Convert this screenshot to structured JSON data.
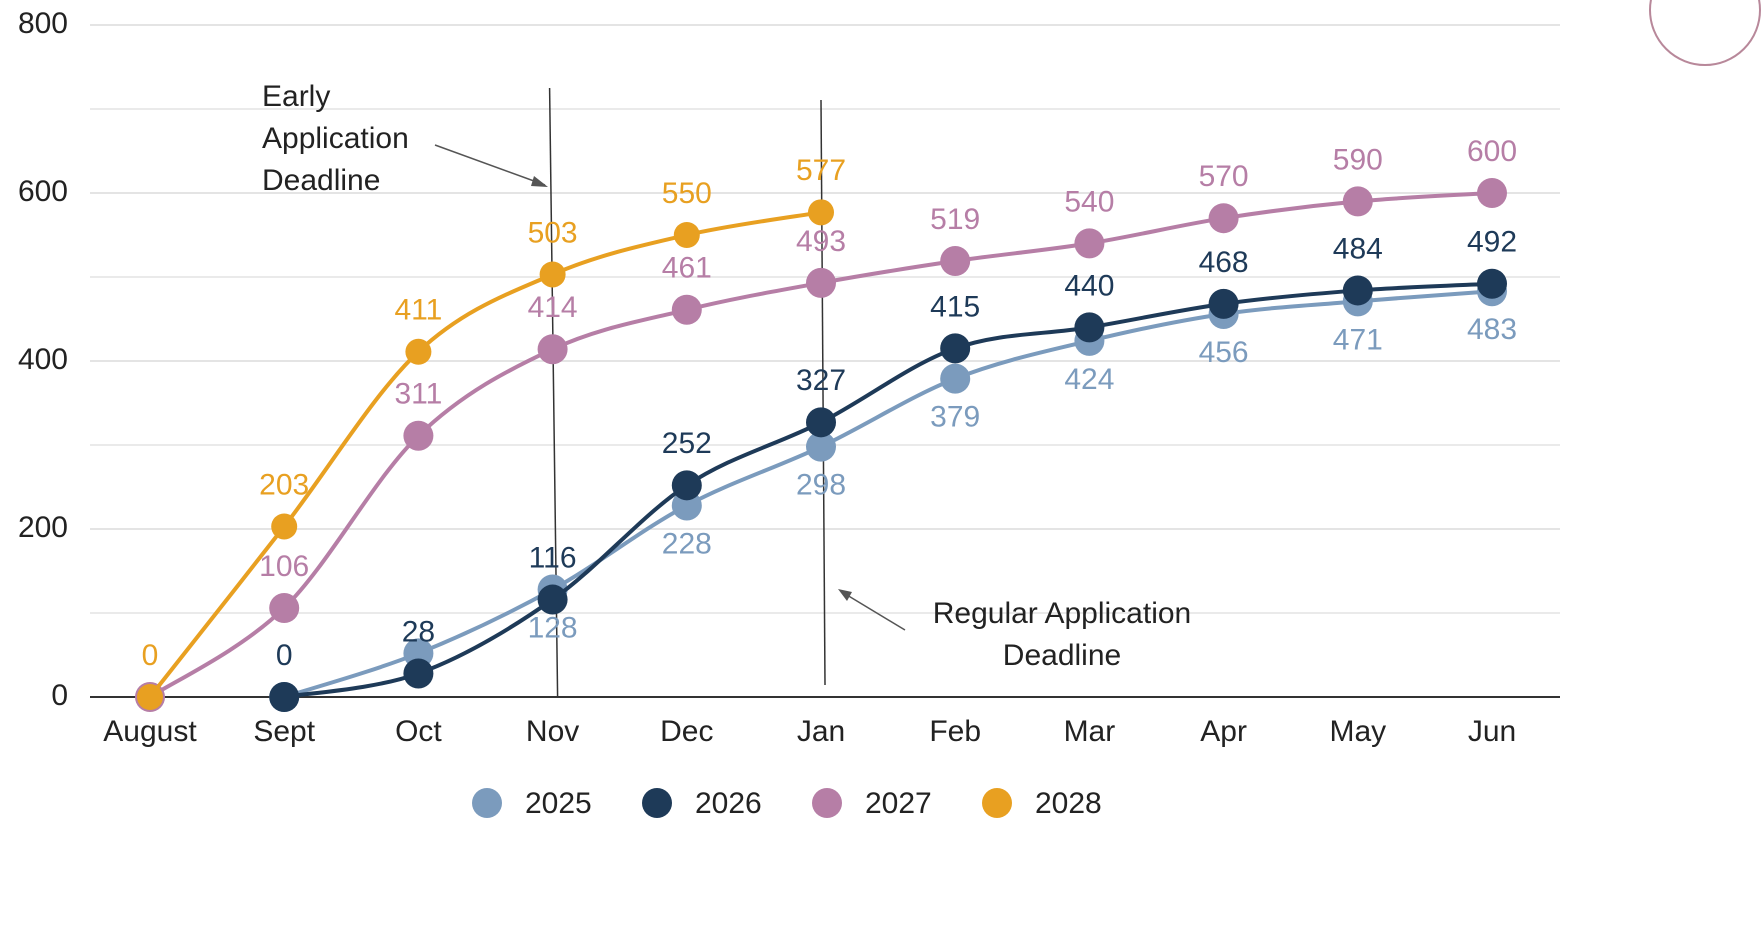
{
  "chart_data": {
    "type": "line",
    "categories": [
      "August",
      "Sept",
      "Oct",
      "Nov",
      "Dec",
      "Jan",
      "Feb",
      "Mar",
      "Apr",
      "May",
      "Jun"
    ],
    "series": [
      {
        "name": "2025",
        "color": "#7b9bbd",
        "values": [
          null,
          0,
          52,
          128,
          228,
          298,
          379,
          424,
          456,
          471,
          483
        ],
        "value_labels": [
          null,
          null,
          null,
          "128",
          "228",
          "298",
          "379",
          "424",
          "456",
          "471",
          "483"
        ]
      },
      {
        "name": "2026",
        "color": "#1e3a58",
        "values": [
          null,
          0,
          28,
          116,
          252,
          327,
          415,
          440,
          468,
          484,
          492
        ],
        "value_labels": [
          null,
          "0",
          "28",
          "116",
          "252",
          "327",
          "415",
          "440",
          "468",
          "484",
          "492"
        ]
      },
      {
        "name": "2027",
        "color": "#b67ea6",
        "values": [
          0,
          106,
          311,
          414,
          461,
          493,
          519,
          540,
          570,
          590,
          600
        ],
        "value_labels": [
          null,
          "106",
          "311",
          "414",
          "461",
          "493",
          "519",
          "540",
          "570",
          "590",
          "600"
        ]
      },
      {
        "name": "2028",
        "color": "#e8a021",
        "values": [
          0,
          203,
          411,
          503,
          550,
          577,
          null,
          null,
          null,
          null,
          null
        ],
        "value_labels": [
          "0",
          "203",
          "411",
          "503",
          "550",
          "577",
          null,
          null,
          null,
          null,
          null
        ]
      }
    ],
    "ylim": [
      0,
      800
    ],
    "yticks": [
      0,
      200,
      400,
      600,
      800
    ],
    "y_minor_ticks": [
      100,
      300,
      500,
      700
    ],
    "grid": true,
    "legend": "bottom",
    "annotations": [
      {
        "lines": [
          "Early",
          "Application",
          "Deadline"
        ],
        "category": 3
      },
      {
        "lines": [
          "Regular Application",
          "Deadline"
        ],
        "category": 5
      }
    ]
  }
}
